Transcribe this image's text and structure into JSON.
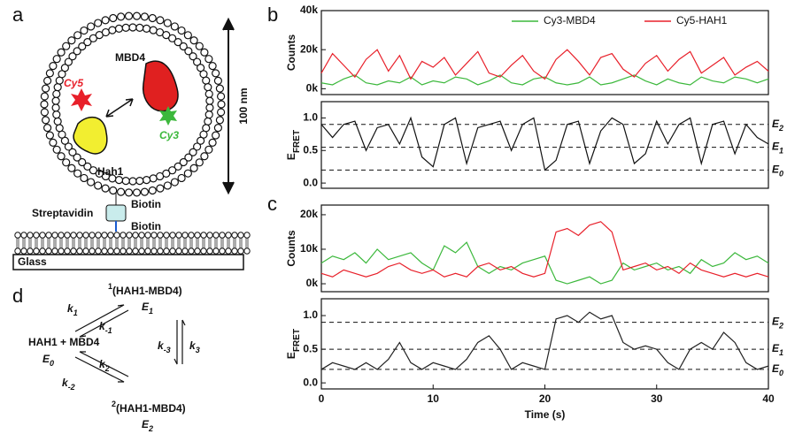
{
  "panel_labels": {
    "a": "a",
    "b": "b",
    "c": "c",
    "d": "d"
  },
  "diagram": {
    "mbd4": "MBD4",
    "cy5": "Cy5",
    "cy3": "Cy3",
    "hah1": "Hah1",
    "size": "100 nm",
    "streptavidin": "Streptavidin",
    "biotin_top": "Biotin",
    "biotin_bottom": "Biotin",
    "glass": "Glass"
  },
  "scheme": {
    "state1": {
      "sup": "1",
      "text": "(HAH1-MBD4)"
    },
    "state1_energy": {
      "text": "E",
      "sub": "1"
    },
    "state0": {
      "text": "HAH1 + MBD4"
    },
    "state0_energy": {
      "text": "E",
      "sub": "0"
    },
    "state2": {
      "sup": "2",
      "text": "(HAH1-MBD4)"
    },
    "state2_energy": {
      "text": "E",
      "sub": "2"
    },
    "k1": {
      "text": "k",
      "sub": "1"
    },
    "k_minus1": {
      "text": "k",
      "sub": "-1"
    },
    "k2": {
      "text": "k",
      "sub": "2"
    },
    "k_minus2": {
      "text": "k",
      "sub": "-2"
    },
    "k3": {
      "text": "k",
      "sub": "3"
    },
    "k_minus3": {
      "text": "k",
      "sub": "-3"
    }
  },
  "chart_data": [
    {
      "type": "line",
      "ylabel": "Counts",
      "legend": "top-right",
      "xlim": [
        0,
        40
      ],
      "x": [
        0,
        1,
        2,
        3,
        4,
        5,
        6,
        7,
        8,
        9,
        10,
        11,
        12,
        13,
        14,
        15,
        16,
        17,
        18,
        19,
        20,
        21,
        22,
        23,
        24,
        25,
        26,
        27,
        28,
        29,
        30,
        31,
        32,
        33,
        34,
        35,
        36,
        37,
        38,
        39,
        40
      ],
      "ylim": [
        -3000,
        40000
      ],
      "yticks": [
        {
          "value": 0,
          "label": "0k"
        },
        {
          "value": 20000,
          "label": "20k"
        },
        {
          "value": 40000,
          "label": "40k"
        }
      ],
      "series": [
        {
          "name": "Cy3-MBD4",
          "color": "#3cb83c",
          "values": [
            3000,
            2000,
            5000,
            7000,
            3000,
            2000,
            4000,
            3000,
            6000,
            2000,
            4000,
            3000,
            6000,
            5000,
            2000,
            4000,
            7000,
            3000,
            2000,
            5000,
            6000,
            3000,
            2000,
            3000,
            6000,
            2000,
            3000,
            5000,
            7000,
            4000,
            2000,
            5000,
            3000,
            2000,
            6000,
            4000,
            3000,
            6000,
            5000,
            3000,
            5000
          ]
        },
        {
          "name": "Cy5-HAH1",
          "color": "#e8202a",
          "values": [
            8000,
            18000,
            12000,
            6000,
            15000,
            20000,
            9000,
            17000,
            5000,
            14000,
            11000,
            16000,
            7000,
            13000,
            19000,
            8000,
            6000,
            12000,
            17000,
            9000,
            5000,
            15000,
            20000,
            14000,
            7000,
            16000,
            18000,
            10000,
            6000,
            13000,
            17000,
            9000,
            15000,
            19000,
            8000,
            12000,
            16000,
            7000,
            11000,
            14000,
            9000
          ]
        }
      ]
    },
    {
      "type": "line",
      "ylabel": "E",
      "ylabel_sub": "FRET",
      "xlim": [
        0,
        40
      ],
      "x": [
        0,
        1,
        2,
        3,
        4,
        5,
        6,
        7,
        8,
        9,
        10,
        11,
        12,
        13,
        14,
        15,
        16,
        17,
        18,
        19,
        20,
        21,
        22,
        23,
        24,
        25,
        26,
        27,
        28,
        29,
        30,
        31,
        32,
        33,
        34,
        35,
        36,
        37,
        38,
        39,
        40
      ],
      "ylim": [
        -0.08,
        1.25
      ],
      "yticks": [
        {
          "value": 0,
          "label": "0.0"
        },
        {
          "value": 0.5,
          "label": "0.5"
        },
        {
          "value": 1,
          "label": "1.0"
        }
      ],
      "hlines": [
        {
          "value": 0.9,
          "text": "E",
          "sub": "2"
        },
        {
          "value": 0.55,
          "text": "E",
          "sub": "1"
        },
        {
          "value": 0.2,
          "text": "E",
          "sub": "0"
        }
      ],
      "series": [
        {
          "color": "#111111",
          "values": [
            0.9,
            0.7,
            0.9,
            0.95,
            0.5,
            0.85,
            0.9,
            0.6,
            1.0,
            0.4,
            0.25,
            0.9,
            1.0,
            0.3,
            0.85,
            0.9,
            0.95,
            0.5,
            0.9,
            1.0,
            0.2,
            0.35,
            0.9,
            0.95,
            0.3,
            0.8,
            1.0,
            0.9,
            0.3,
            0.45,
            0.95,
            0.6,
            0.9,
            1.0,
            0.3,
            0.9,
            0.95,
            0.45,
            0.9,
            0.7,
            0.6
          ]
        }
      ]
    },
    {
      "type": "line",
      "ylabel": "Counts",
      "xlim": [
        0,
        40
      ],
      "x": [
        0,
        1,
        2,
        3,
        4,
        5,
        6,
        7,
        8,
        9,
        10,
        11,
        12,
        13,
        14,
        15,
        16,
        17,
        18,
        19,
        20,
        21,
        22,
        23,
        24,
        25,
        26,
        27,
        28,
        29,
        30,
        31,
        32,
        33,
        34,
        35,
        36,
        37,
        38,
        39,
        40
      ],
      "ylim": [
        -2300,
        22800
      ],
      "yticks": [
        {
          "value": 0,
          "label": "0k"
        },
        {
          "value": 10000,
          "label": "10k"
        },
        {
          "value": 20000,
          "label": "20k"
        }
      ],
      "series": [
        {
          "color": "#3cb83c",
          "values": [
            6000,
            8000,
            7000,
            9000,
            6000,
            10000,
            7000,
            8000,
            9000,
            6000,
            4000,
            11000,
            9000,
            12000,
            5000,
            3000,
            5000,
            4000,
            6000,
            7000,
            8000,
            1000,
            0,
            1000,
            2000,
            0,
            1000,
            6000,
            4000,
            5000,
            6000,
            4000,
            5000,
            3000,
            7000,
            5000,
            6000,
            9000,
            7000,
            8000,
            6000
          ]
        },
        {
          "color": "#e8202a",
          "values": [
            3000,
            2000,
            4000,
            3000,
            2000,
            3000,
            5000,
            6000,
            4000,
            3000,
            4000,
            2000,
            3000,
            2000,
            5000,
            6000,
            4000,
            5000,
            3000,
            2000,
            3000,
            15000,
            16000,
            14000,
            17000,
            18000,
            15000,
            4000,
            5000,
            6000,
            4000,
            5000,
            3000,
            6000,
            4000,
            3000,
            2000,
            3000,
            2000,
            3000,
            2000
          ]
        }
      ]
    },
    {
      "type": "line",
      "ylabel": "E",
      "ylabel_sub": "FRET",
      "xlabel": "Time (s)",
      "xlim": [
        0,
        40
      ],
      "xticks": [
        0,
        10,
        20,
        30,
        40
      ],
      "x": [
        0,
        1,
        2,
        3,
        4,
        5,
        6,
        7,
        8,
        9,
        10,
        11,
        12,
        13,
        14,
        15,
        16,
        17,
        18,
        19,
        20,
        21,
        22,
        23,
        24,
        25,
        26,
        27,
        28,
        29,
        30,
        31,
        32,
        33,
        34,
        35,
        36,
        37,
        38,
        39,
        40
      ],
      "ylim": [
        -0.09,
        1.25
      ],
      "yticks": [
        {
          "value": 0,
          "label": "0.0"
        },
        {
          "value": 0.5,
          "label": "0.5"
        },
        {
          "value": 1,
          "label": "1.0"
        }
      ],
      "hlines": [
        {
          "value": 0.9,
          "text": "E",
          "sub": "2"
        },
        {
          "value": 0.5,
          "text": "E",
          "sub": "1"
        },
        {
          "value": 0.2,
          "text": "E",
          "sub": "0"
        }
      ],
      "series": [
        {
          "color": "#222222",
          "values": [
            0.2,
            0.3,
            0.25,
            0.2,
            0.3,
            0.2,
            0.35,
            0.6,
            0.3,
            0.2,
            0.3,
            0.25,
            0.2,
            0.35,
            0.6,
            0.7,
            0.5,
            0.2,
            0.3,
            0.25,
            0.2,
            0.95,
            1.0,
            0.9,
            1.05,
            0.95,
            1.0,
            0.6,
            0.5,
            0.55,
            0.5,
            0.3,
            0.2,
            0.5,
            0.6,
            0.5,
            0.75,
            0.6,
            0.3,
            0.2,
            0.25
          ]
        }
      ]
    }
  ]
}
